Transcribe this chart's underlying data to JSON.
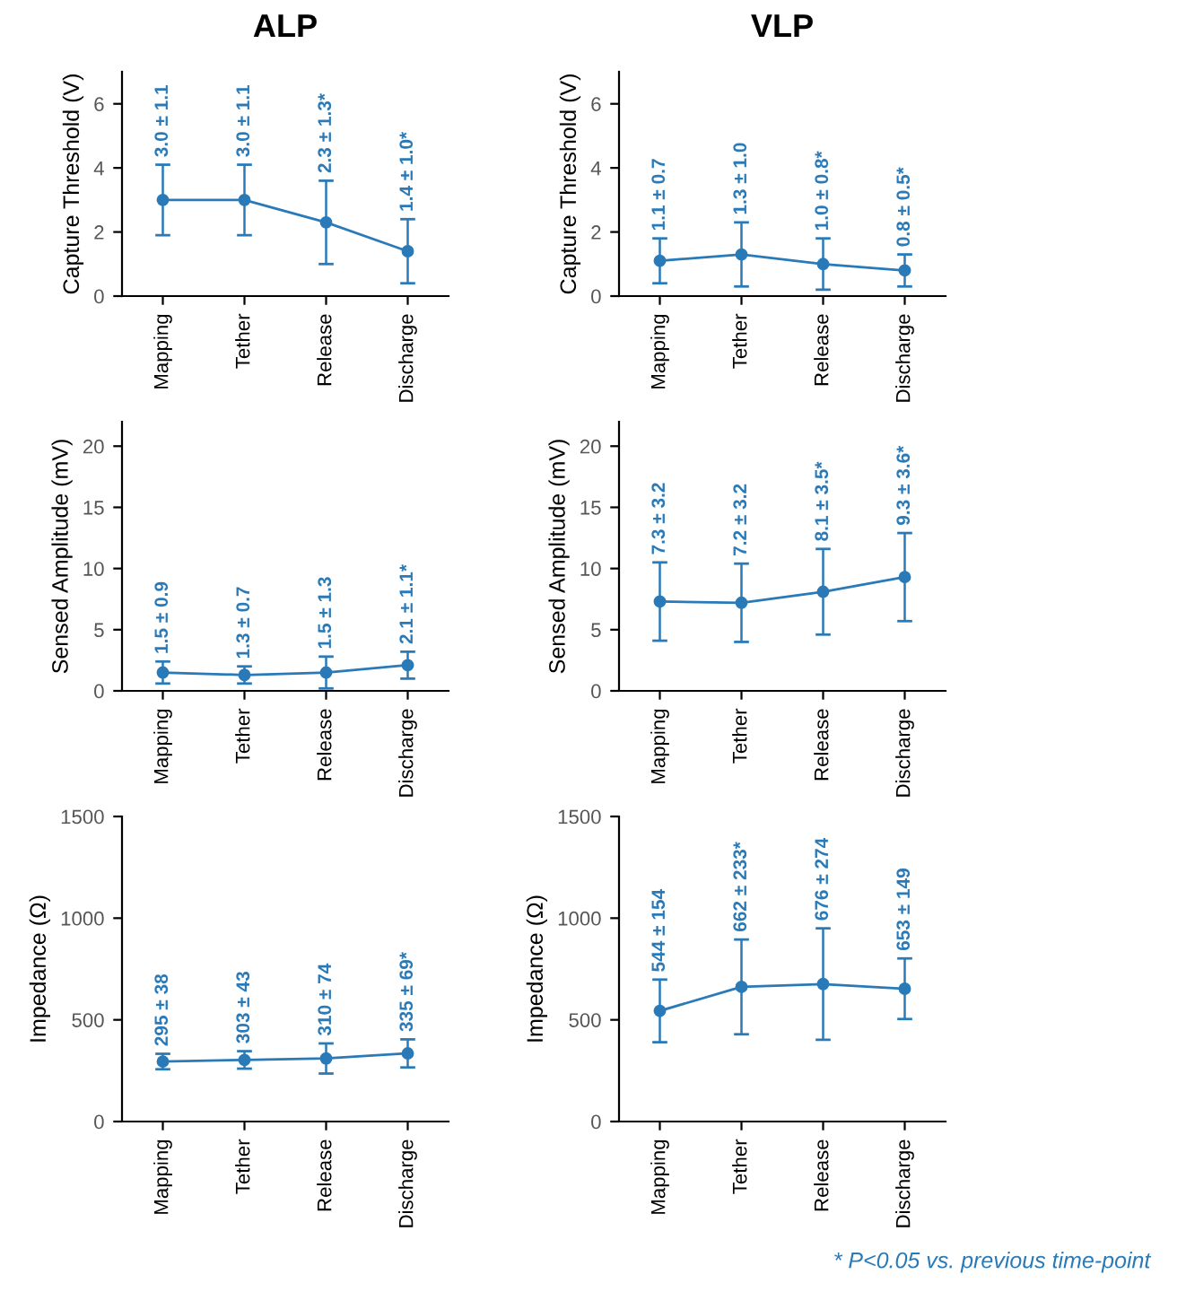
{
  "chart_data": [
    {
      "type": "line",
      "title": "ALP",
      "ylabel": "Capture Threshold (V)",
      "categories": [
        "Mapping",
        "Tether",
        "Release",
        "Discharge"
      ],
      "ylim": [
        0,
        7
      ],
      "yticks": [
        0,
        2,
        4,
        6
      ],
      "marker": "circle",
      "line_style": "solid",
      "grid": false,
      "legend": false,
      "series": [
        {
          "color": "#2a7ab8",
          "values": [
            3.0,
            3.0,
            2.3,
            1.4
          ],
          "errors": [
            1.1,
            1.1,
            1.3,
            1.0
          ],
          "value_labels": [
            "3.0 ± 1.1",
            "3.0 ± 1.1",
            "2.3 ± 1.3*",
            "1.4 ± 1.0*"
          ]
        }
      ]
    },
    {
      "type": "line",
      "title": "VLP",
      "ylabel": "Capture Threshold (V)",
      "categories": [
        "Mapping",
        "Tether",
        "Release",
        "Discharge"
      ],
      "ylim": [
        0,
        7
      ],
      "yticks": [
        0,
        2,
        4,
        6
      ],
      "marker": "circle",
      "line_style": "solid",
      "grid": false,
      "legend": false,
      "series": [
        {
          "color": "#2a7ab8",
          "values": [
            1.1,
            1.3,
            1.0,
            0.8
          ],
          "errors": [
            0.7,
            1.0,
            0.8,
            0.5
          ],
          "value_labels": [
            "1.1 ± 0.7",
            "1.3 ± 1.0",
            "1.0 ± 0.8*",
            "0.8 ± 0.5*"
          ]
        }
      ]
    },
    {
      "type": "line",
      "ylabel": "Sensed Amplitude (mV)",
      "categories": [
        "Mapping",
        "Tether",
        "Release",
        "Discharge"
      ],
      "ylim": [
        0,
        22
      ],
      "yticks": [
        0,
        5,
        10,
        15,
        20
      ],
      "marker": "circle",
      "line_style": "solid",
      "grid": false,
      "legend": false,
      "series": [
        {
          "color": "#2a7ab8",
          "values": [
            1.5,
            1.3,
            1.5,
            2.1
          ],
          "errors": [
            0.9,
            0.7,
            1.3,
            1.1
          ],
          "value_labels": [
            "1.5 ± 0.9",
            "1.3 ± 0.7",
            "1.5 ± 1.3",
            "2.1 ± 1.1*"
          ]
        }
      ]
    },
    {
      "type": "line",
      "ylabel": "Sensed Amplitude (mV)",
      "categories": [
        "Mapping",
        "Tether",
        "Release",
        "Discharge"
      ],
      "ylim": [
        0,
        22
      ],
      "yticks": [
        0,
        5,
        10,
        15,
        20
      ],
      "marker": "circle",
      "line_style": "solid",
      "grid": false,
      "legend": false,
      "series": [
        {
          "color": "#2a7ab8",
          "values": [
            7.3,
            7.2,
            8.1,
            9.3
          ],
          "errors": [
            3.2,
            3.2,
            3.5,
            3.6
          ],
          "value_labels": [
            "7.3 ± 3.2",
            "7.2 ± 3.2",
            "8.1 ± 3.5*",
            "9.3 ± 3.6*"
          ]
        }
      ]
    },
    {
      "type": "line",
      "ylabel": "Impedance (Ω)",
      "categories": [
        "Mapping",
        "Tether",
        "Release",
        "Discharge"
      ],
      "ylim": [
        0,
        1500
      ],
      "yticks": [
        0,
        500,
        1000,
        1500
      ],
      "marker": "circle",
      "line_style": "solid",
      "grid": false,
      "legend": false,
      "series": [
        {
          "color": "#2a7ab8",
          "values": [
            295,
            303,
            310,
            335
          ],
          "errors": [
            38,
            43,
            74,
            69
          ],
          "value_labels": [
            "295 ± 38",
            "303 ± 43",
            "310 ± 74",
            "335 ± 69*"
          ]
        }
      ]
    },
    {
      "type": "line",
      "ylabel": "Impedance (Ω)",
      "categories": [
        "Mapping",
        "Tether",
        "Release",
        "Discharge"
      ],
      "ylim": [
        0,
        1500
      ],
      "yticks": [
        0,
        500,
        1000,
        1500
      ],
      "marker": "circle",
      "line_style": "solid",
      "grid": false,
      "legend": false,
      "series": [
        {
          "color": "#2a7ab8",
          "values": [
            544,
            662,
            676,
            653
          ],
          "errors": [
            154,
            233,
            274,
            149
          ],
          "value_labels": [
            "544 ± 154",
            "662 ± 233*",
            "676 ± 274",
            "653 ± 149"
          ]
        }
      ],
      "annotations": [
        "* P<0.05 vs. previous time-point"
      ]
    }
  ]
}
